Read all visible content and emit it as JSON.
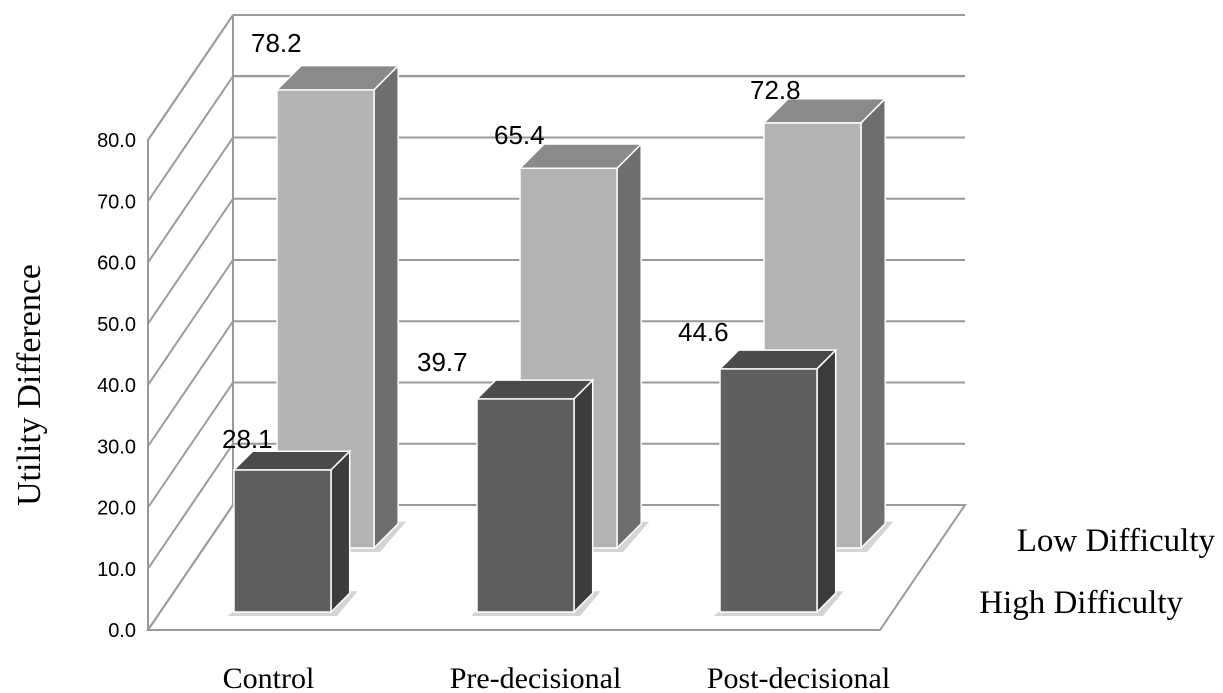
{
  "chart_data": {
    "type": "bar",
    "subtype": "3d-column",
    "categories": [
      "Control",
      "Pre-decisional",
      "Post-decisional"
    ],
    "series": [
      {
        "name": "High Difficulty",
        "values": [
          28.1,
          39.7,
          44.6
        ],
        "color": "#5f5f5f"
      },
      {
        "name": "Low Difficulty",
        "values": [
          78.2,
          65.4,
          72.8
        ],
        "color": "#b3b3b3"
      }
    ],
    "value_labels": [
      [
        "28.1",
        "39.7",
        "44.6"
      ],
      [
        "78.2",
        "65.4",
        "72.8"
      ]
    ],
    "ylabel": "Utility Difference",
    "yticks": [
      "0.0",
      "10.0",
      "20.0",
      "30.0",
      "40.0",
      "50.0",
      "60.0",
      "70.0",
      "80.0"
    ],
    "ylim": [
      0,
      80
    ],
    "grid": true
  }
}
